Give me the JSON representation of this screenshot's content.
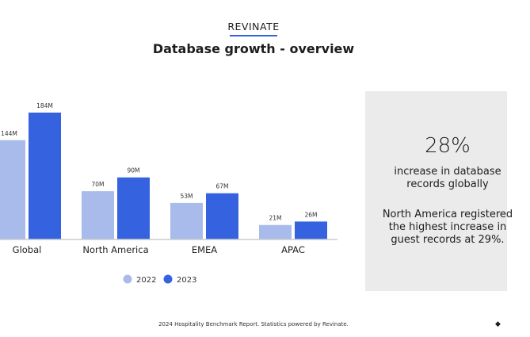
{
  "header": {
    "brand": "REVINATE",
    "title": "Database growth - overview"
  },
  "chart_data": {
    "type": "bar",
    "categories": [
      "Global",
      "North America",
      "EMEA",
      "APAC"
    ],
    "series": [
      {
        "name": "2022",
        "values": [
          144,
          70,
          53,
          21
        ],
        "labels": [
          "144M",
          "70M",
          "53M",
          "21M"
        ],
        "color": "#a9bbea"
      },
      {
        "name": "2023",
        "values": [
          184,
          90,
          67,
          26
        ],
        "labels": [
          "184M",
          "90M",
          "67M",
          "26M"
        ],
        "color": "#3563e0"
      }
    ],
    "unit": "M",
    "legend": "bottom",
    "grid": false
  },
  "panel": {
    "stat": "28%",
    "stat_text": "increase in database records globally",
    "note": "North America registered the highest increase in guest records at 29%."
  },
  "footer": {
    "text": "2024 Hospitality Benchmark Report. Statistics powered by Revinate."
  }
}
